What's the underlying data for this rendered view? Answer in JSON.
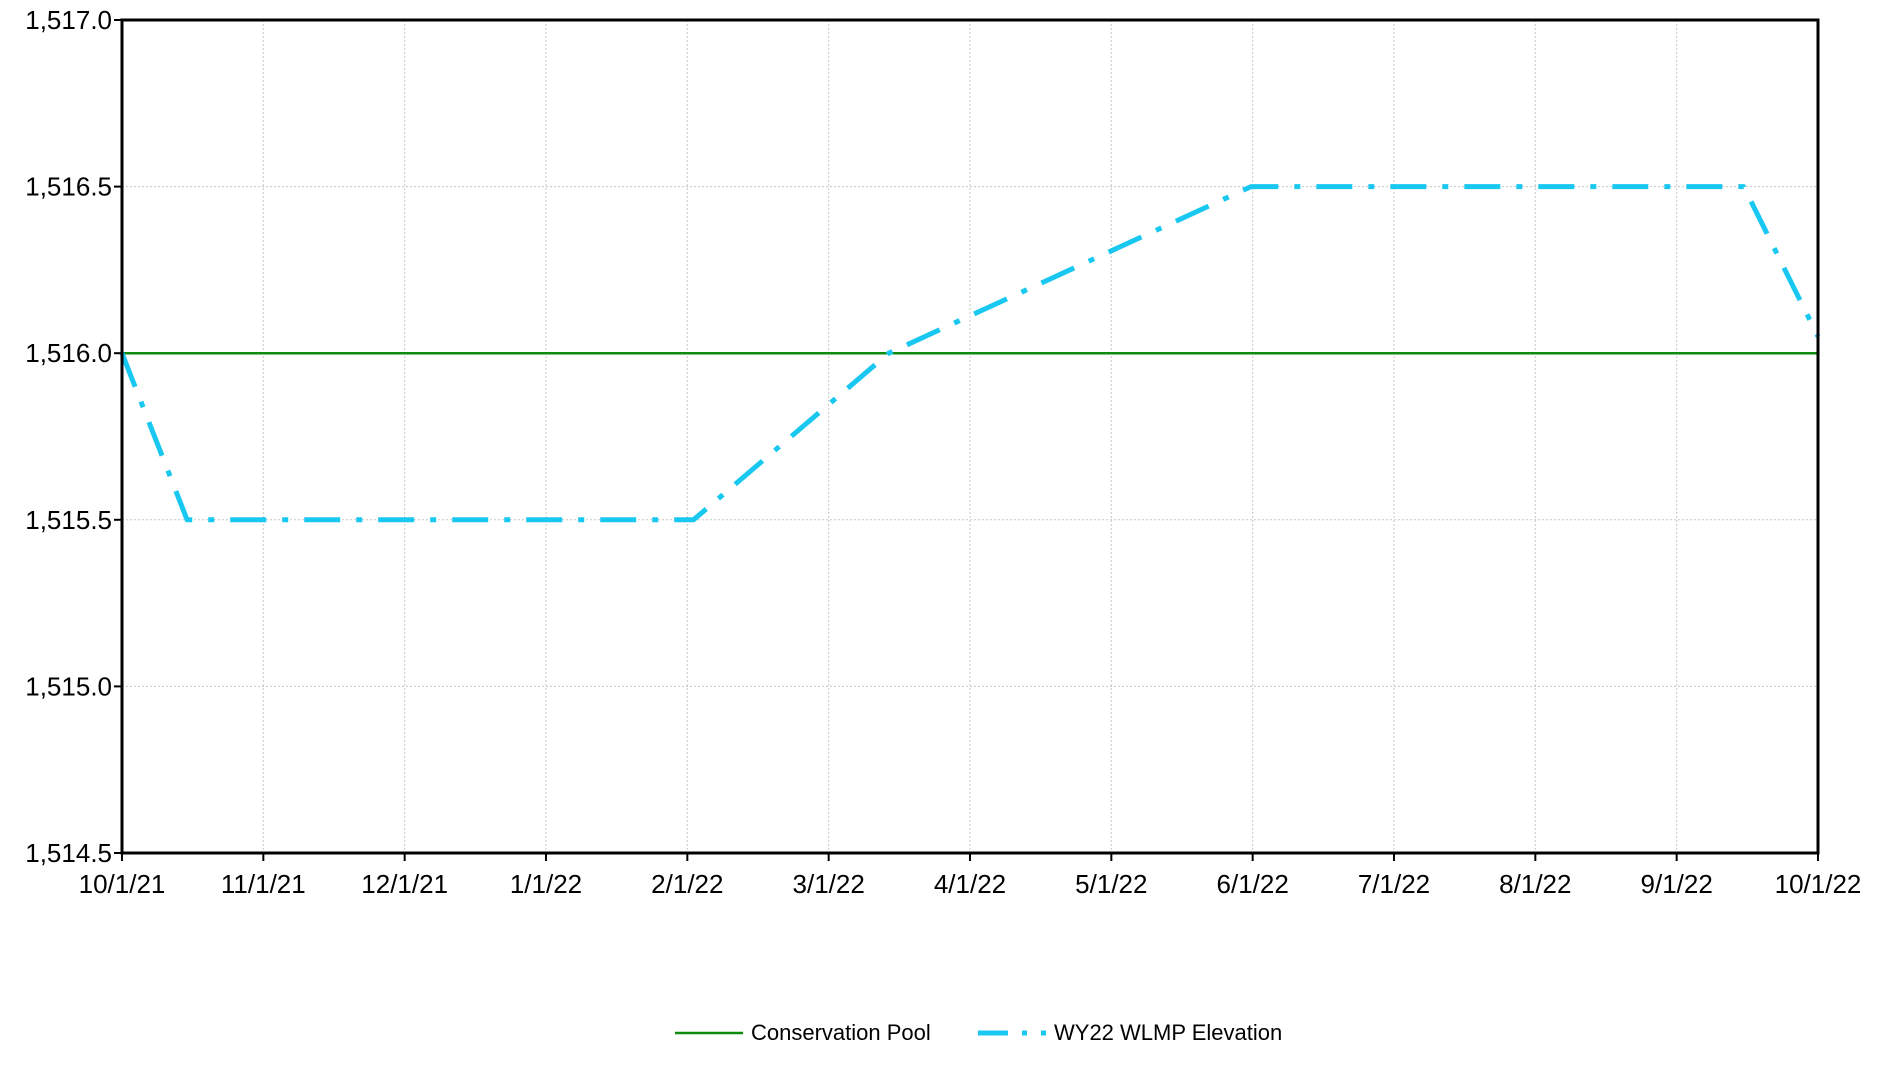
{
  "chart_data": {
    "type": "line",
    "title": "",
    "xlabel": "",
    "ylabel": "",
    "x_tick_labels": [
      "10/1/21",
      "11/1/21",
      "12/1/21",
      "1/1/22",
      "2/1/22",
      "3/1/22",
      "4/1/22",
      "5/1/22",
      "6/1/22",
      "7/1/22",
      "8/1/22",
      "9/1/22",
      "10/1/22"
    ],
    "x_range": [
      "2021-10-01",
      "2022-10-01"
    ],
    "ylim": [
      1514.5,
      1517.0
    ],
    "y_ticks": [
      1514.5,
      1515.0,
      1515.5,
      1516.0,
      1516.5,
      1517.0
    ],
    "y_tick_labels": [
      "1,514.5",
      "1,515.0",
      "1,515.5",
      "1,516.0",
      "1,516.5",
      "1,517.0"
    ],
    "grid": true,
    "legend_position": "bottom",
    "series": [
      {
        "name": "Conservation Pool",
        "color": "#0e8a0e",
        "style": "solid",
        "x": [
          "2021-10-01",
          "2022-10-01"
        ],
        "values": [
          1516.0,
          1516.0
        ]
      },
      {
        "name": "WY22 WLMP Elevation",
        "color": "#18c8f0",
        "style": "dash-dot",
        "x": [
          "2021-10-01",
          "2021-10-15",
          "2022-02-01",
          "2022-03-15",
          "2022-06-01",
          "2022-09-15",
          "2022-10-01"
        ],
        "values": [
          1516.0,
          1515.5,
          1515.5,
          1516.0,
          1516.5,
          1516.5,
          1516.05
        ]
      }
    ]
  }
}
